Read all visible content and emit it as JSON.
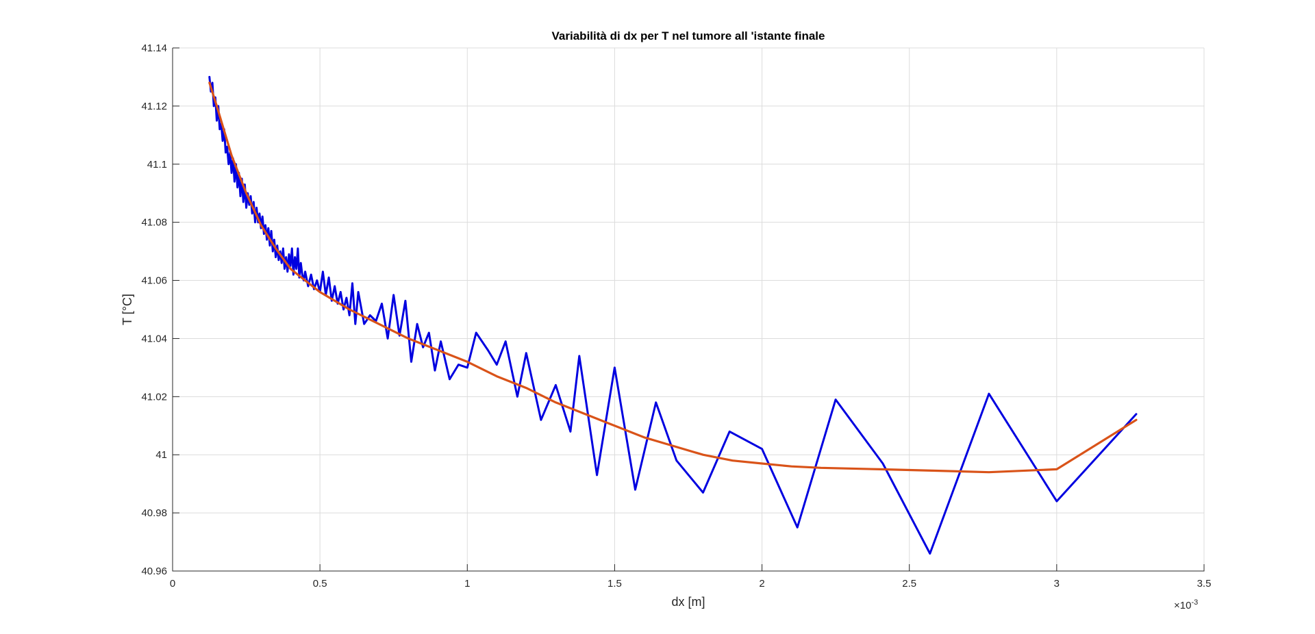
{
  "chart_data": {
    "type": "line",
    "title": "Variabilità di dx per T nel tumore all 'istante finale",
    "xlabel": "dx [m]",
    "ylabel": "T [°C]",
    "x_exponent_label": "×10",
    "x_exponent_power": "-3",
    "xlim": [
      0,
      3.5
    ],
    "ylim": [
      40.96,
      41.14
    ],
    "xticks": [
      "0",
      "0.5",
      "1",
      "1.5",
      "2",
      "2.5",
      "3",
      "3.5"
    ],
    "yticks": [
      "40.96",
      "40.98",
      "41",
      "41.02",
      "41.04",
      "41.06",
      "41.08",
      "41.1",
      "41.12",
      "41.14"
    ],
    "grid": true,
    "series": [
      {
        "color": "#0000e0",
        "x": [
          0.125,
          0.13,
          0.135,
          0.14,
          0.145,
          0.15,
          0.155,
          0.16,
          0.165,
          0.17,
          0.175,
          0.18,
          0.185,
          0.19,
          0.195,
          0.2,
          0.205,
          0.21,
          0.215,
          0.22,
          0.225,
          0.23,
          0.235,
          0.24,
          0.245,
          0.25,
          0.255,
          0.26,
          0.265,
          0.27,
          0.275,
          0.28,
          0.285,
          0.29,
          0.295,
          0.3,
          0.305,
          0.31,
          0.315,
          0.32,
          0.325,
          0.33,
          0.335,
          0.34,
          0.345,
          0.35,
          0.355,
          0.36,
          0.365,
          0.37,
          0.375,
          0.38,
          0.385,
          0.39,
          0.395,
          0.4,
          0.405,
          0.41,
          0.415,
          0.42,
          0.425,
          0.43,
          0.435,
          0.44,
          0.445,
          0.45,
          0.46,
          0.47,
          0.48,
          0.49,
          0.5,
          0.51,
          0.52,
          0.53,
          0.54,
          0.55,
          0.56,
          0.57,
          0.58,
          0.59,
          0.6,
          0.61,
          0.62,
          0.63,
          0.65,
          0.67,
          0.69,
          0.71,
          0.73,
          0.75,
          0.77,
          0.79,
          0.81,
          0.83,
          0.85,
          0.87,
          0.89,
          0.91,
          0.94,
          0.97,
          1.0,
          1.03,
          1.07,
          1.1,
          1.13,
          1.17,
          1.2,
          1.25,
          1.3,
          1.35,
          1.38,
          1.44,
          1.5,
          1.57,
          1.64,
          1.71,
          1.8,
          1.89,
          2.0,
          2.12,
          2.25,
          2.41,
          2.57,
          2.77,
          3.0,
          3.27
        ],
        "values": [
          41.13,
          41.125,
          41.128,
          41.12,
          41.123,
          41.115,
          41.12,
          41.112,
          41.114,
          41.108,
          41.112,
          41.104,
          41.106,
          41.1,
          41.104,
          41.097,
          41.102,
          41.094,
          41.1,
          41.092,
          41.097,
          41.089,
          41.095,
          41.087,
          41.093,
          41.085,
          41.09,
          41.086,
          41.089,
          41.083,
          41.087,
          41.08,
          41.085,
          41.08,
          41.083,
          41.078,
          41.082,
          41.076,
          41.079,
          41.074,
          41.078,
          41.072,
          41.077,
          41.07,
          41.074,
          41.068,
          41.072,
          41.067,
          41.07,
          41.066,
          41.071,
          41.064,
          41.068,
          41.063,
          41.069,
          41.065,
          41.071,
          41.062,
          41.068,
          41.064,
          41.071,
          41.061,
          41.066,
          41.062,
          41.06,
          41.063,
          41.058,
          41.062,
          41.057,
          41.06,
          41.056,
          41.063,
          41.055,
          41.061,
          41.053,
          41.058,
          41.052,
          41.056,
          41.05,
          41.054,
          41.048,
          41.059,
          41.045,
          41.056,
          41.045,
          41.048,
          41.046,
          41.052,
          41.04,
          41.055,
          41.041,
          41.053,
          41.032,
          41.045,
          41.037,
          41.042,
          41.029,
          41.039,
          41.026,
          41.031,
          41.03,
          41.042,
          41.036,
          41.031,
          41.039,
          41.02,
          41.035,
          41.012,
          41.024,
          41.008,
          41.034,
          40.993,
          41.03,
          40.988,
          41.018,
          40.998,
          40.987,
          41.008,
          41.002,
          40.975,
          41.019,
          40.997,
          40.966,
          41.021,
          40.984,
          41.014
        ]
      },
      {
        "color": "#d95319",
        "x": [
          0.125,
          0.15,
          0.2,
          0.25,
          0.3,
          0.35,
          0.4,
          0.45,
          0.5,
          0.6,
          0.7,
          0.8,
          0.9,
          1.0,
          1.1,
          1.2,
          1.3,
          1.4,
          1.5,
          1.6,
          1.7,
          1.8,
          1.9,
          2.0,
          2.1,
          2.2,
          2.4,
          2.6,
          2.77,
          3.0,
          3.27
        ],
        "values": [
          41.128,
          41.12,
          41.103,
          41.09,
          41.079,
          41.071,
          41.064,
          41.06,
          41.056,
          41.05,
          41.045,
          41.04,
          41.036,
          41.032,
          41.027,
          41.023,
          41.018,
          41.014,
          41.01,
          41.006,
          41.003,
          41.0,
          40.998,
          40.997,
          40.996,
          40.9955,
          40.995,
          40.9945,
          40.994,
          40.995,
          41.012
        ]
      }
    ]
  }
}
